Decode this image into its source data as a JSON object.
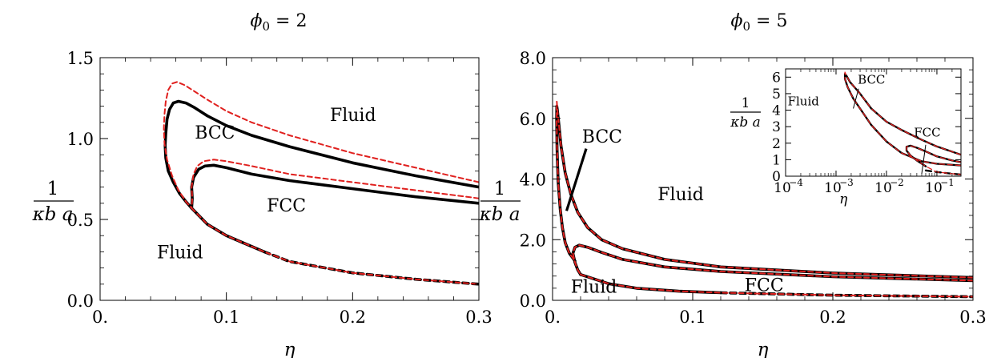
{
  "chart_data": [
    {
      "type": "line",
      "title": "ϕ₀ = 2",
      "xlabel": "η",
      "ylabel": {
        "numerator": "1",
        "denominator": "κb a"
      },
      "xlim": [
        0.0,
        0.3
      ],
      "ylim": [
        0.0,
        1.5
      ],
      "x_ticks": [
        0.0,
        0.1,
        0.2,
        0.3
      ],
      "x_tick_labels": [
        "0.",
        "0.1",
        "0.2",
        "0.3"
      ],
      "y_ticks": [
        0.0,
        0.5,
        1.0,
        1.5
      ],
      "y_tick_labels": [
        "0.0",
        "0.5",
        "1.0",
        "1.5"
      ],
      "annotations": [
        {
          "text": "BCC",
          "x": 0.075,
          "y": 1.0
        },
        {
          "text": "Fluid",
          "x": 0.182,
          "y": 1.11
        },
        {
          "text": "FCC",
          "x": 0.132,
          "y": 0.55
        },
        {
          "text": "Fluid",
          "x": 0.045,
          "y": 0.26
        }
      ],
      "series": [
        {
          "style": "solid-black",
          "x": [
            0.3,
            0.25,
            0.2,
            0.15,
            0.12,
            0.1,
            0.085,
            0.075,
            0.068,
            0.062,
            0.058,
            0.055,
            0.053,
            0.052,
            0.0515,
            0.052,
            0.054,
            0.058,
            0.063,
            0.068,
            0.0725
          ],
          "y": [
            0.7,
            0.77,
            0.85,
            0.95,
            1.02,
            1.08,
            1.14,
            1.19,
            1.22,
            1.23,
            1.22,
            1.18,
            1.12,
            1.03,
            0.96,
            0.88,
            0.8,
            0.73,
            0.66,
            0.61,
            0.57
          ]
        },
        {
          "style": "solid-black",
          "x": [
            0.3,
            0.25,
            0.2,
            0.15,
            0.12,
            0.1,
            0.09,
            0.083,
            0.078,
            0.074,
            0.0725,
            0.073,
            0.0725
          ],
          "y": [
            0.6,
            0.64,
            0.69,
            0.74,
            0.78,
            0.82,
            0.835,
            0.83,
            0.81,
            0.76,
            0.7,
            0.63,
            0.57
          ]
        },
        {
          "style": "solid-black",
          "x": [
            0.0725,
            0.085,
            0.1,
            0.115,
            0.13
          ],
          "y": [
            0.57,
            0.47,
            0.4,
            0.35,
            0.3
          ]
        },
        {
          "style": "dashed-black",
          "x": [
            0.13,
            0.15,
            0.2,
            0.25,
            0.3
          ],
          "y": [
            0.3,
            0.24,
            0.17,
            0.13,
            0.1
          ]
        },
        {
          "style": "dashed-red",
          "x": [
            0.3,
            0.25,
            0.2,
            0.15,
            0.12,
            0.1,
            0.085,
            0.075,
            0.067,
            0.061,
            0.057,
            0.054,
            0.052,
            0.051,
            0.0505,
            0.051,
            0.053,
            0.057,
            0.062,
            0.068,
            0.0725
          ],
          "y": [
            0.73,
            0.82,
            0.91,
            1.02,
            1.1,
            1.17,
            1.24,
            1.29,
            1.33,
            1.35,
            1.34,
            1.3,
            1.23,
            1.15,
            1.06,
            0.97,
            0.87,
            0.77,
            0.68,
            0.61,
            0.57
          ]
        },
        {
          "style": "dashed-red",
          "x": [
            0.3,
            0.25,
            0.2,
            0.15,
            0.12,
            0.1,
            0.09,
            0.082,
            0.077,
            0.074,
            0.0725,
            0.073,
            0.0725
          ],
          "y": [
            0.63,
            0.68,
            0.73,
            0.78,
            0.83,
            0.86,
            0.87,
            0.86,
            0.83,
            0.78,
            0.7,
            0.63,
            0.57
          ]
        },
        {
          "style": "dashed-red",
          "x": [
            0.0725,
            0.085,
            0.1,
            0.115,
            0.13,
            0.15,
            0.2,
            0.25,
            0.3
          ],
          "y": [
            0.57,
            0.47,
            0.4,
            0.35,
            0.3,
            0.24,
            0.17,
            0.13,
            0.1
          ]
        }
      ]
    },
    {
      "type": "line",
      "title": "ϕ₀ = 5",
      "xlabel": "η",
      "ylabel": {
        "numerator": "1",
        "denominator": "κb a"
      },
      "xlim": [
        0.0,
        0.3
      ],
      "ylim": [
        0.0,
        8.0
      ],
      "x_ticks": [
        0.0,
        0.1,
        0.2,
        0.3
      ],
      "x_tick_labels": [
        "0.",
        "0.1",
        "0.2",
        "0.3"
      ],
      "y_ticks": [
        0.0,
        2.0,
        4.0,
        6.0,
        8.0
      ],
      "y_tick_labels": [
        "0.0",
        "2.0",
        "4.0",
        "6.0",
        "8.0"
      ],
      "annotations": [
        {
          "text": "BCC",
          "x": 0.021,
          "y": 5.2
        },
        {
          "text": "Fluid",
          "x": 0.075,
          "y": 3.3
        },
        {
          "text": "Fluid",
          "x": 0.013,
          "y": 0.25
        },
        {
          "text": "FCC",
          "x": 0.137,
          "y": 0.3
        }
      ],
      "pointer": {
        "x": [
          0.01,
          0.024
        ],
        "y": [
          2.95,
          5.0
        ]
      },
      "series": [
        {
          "style": "solid-black",
          "x": [
            0.3,
            0.2,
            0.12,
            0.08,
            0.05,
            0.035,
            0.025,
            0.018,
            0.013,
            0.009,
            0.006,
            0.0045,
            0.0035,
            0.003,
            0.0029,
            0.0032,
            0.004,
            0.0055,
            0.007,
            0.009,
            0.012,
            0.016
          ],
          "y": [
            0.75,
            0.9,
            1.1,
            1.35,
            1.7,
            2.0,
            2.4,
            2.9,
            3.5,
            4.2,
            5.1,
            5.8,
            6.25,
            6.4,
            6.0,
            5.0,
            3.9,
            3.0,
            2.4,
            1.9,
            1.55,
            1.3
          ]
        },
        {
          "style": "solid-black",
          "x": [
            0.3,
            0.2,
            0.12,
            0.08,
            0.05,
            0.035,
            0.025,
            0.019,
            0.016,
            0.0145,
            0.016,
            0.018,
            0.02
          ],
          "y": [
            0.65,
            0.78,
            0.95,
            1.1,
            1.35,
            1.58,
            1.75,
            1.82,
            1.75,
            1.55,
            1.25,
            1.0,
            0.85
          ]
        },
        {
          "style": "solid-black",
          "x": [
            0.02,
            0.04,
            0.06,
            0.09,
            0.12
          ],
          "y": [
            0.85,
            0.55,
            0.4,
            0.3,
            0.25
          ]
        },
        {
          "style": "dashed-black",
          "x": [
            0.12,
            0.2,
            0.3
          ],
          "y": [
            0.25,
            0.17,
            0.12
          ]
        },
        {
          "style": "dashed-red",
          "x": [
            0.3,
            0.2,
            0.12,
            0.08,
            0.05,
            0.035,
            0.025,
            0.018,
            0.013,
            0.009,
            0.006,
            0.0045,
            0.0035,
            0.003,
            0.0029,
            0.0032,
            0.004,
            0.0055,
            0.007,
            0.009,
            0.012,
            0.016
          ],
          "y": [
            0.75,
            0.9,
            1.1,
            1.35,
            1.7,
            2.0,
            2.4,
            2.9,
            3.5,
            4.2,
            5.1,
            5.8,
            6.25,
            6.55,
            6.0,
            5.0,
            3.9,
            3.0,
            2.4,
            1.9,
            1.55,
            1.3
          ]
        },
        {
          "style": "dashed-red",
          "x": [
            0.3,
            0.2,
            0.12,
            0.08,
            0.05,
            0.035,
            0.025,
            0.019,
            0.016,
            0.0145,
            0.016,
            0.018,
            0.02
          ],
          "y": [
            0.65,
            0.78,
            0.95,
            1.1,
            1.35,
            1.58,
            1.75,
            1.82,
            1.75,
            1.55,
            1.25,
            1.0,
            0.85
          ]
        },
        {
          "style": "dashed-red",
          "x": [
            0.02,
            0.04,
            0.06,
            0.09,
            0.12,
            0.2,
            0.3
          ],
          "y": [
            0.85,
            0.55,
            0.4,
            0.3,
            0.25,
            0.17,
            0.12
          ]
        }
      ]
    },
    {
      "type": "line",
      "title": "",
      "xlabel": "η",
      "ylabel": {
        "numerator": "1",
        "denominator": "κb a"
      },
      "xscale": "log",
      "xlim": [
        0.0001,
        0.3
      ],
      "ylim": [
        0,
        6.5
      ],
      "x_ticks": [
        0.0001,
        0.001,
        0.01,
        0.1
      ],
      "x_tick_labels": [
        {
          "base": "10",
          "exp": "−4"
        },
        {
          "base": "10",
          "exp": "−3"
        },
        {
          "base": "10",
          "exp": "−2"
        },
        {
          "base": "10",
          "exp": "−1"
        }
      ],
      "y_ticks": [
        0,
        1,
        2,
        3,
        4,
        5,
        6
      ],
      "y_tick_labels": [
        "0",
        "1",
        "2",
        "3",
        "4",
        "5",
        "6"
      ],
      "annotations": [
        {
          "text": "Fluid",
          "x": 0.00011,
          "y": 4.3
        },
        {
          "text": "BCC",
          "x": 0.0027,
          "y": 5.6
        },
        {
          "text": "FCC",
          "x": 0.035,
          "y": 2.4
        }
      ],
      "pointers": [
        {
          "x": [
            0.0028,
            0.0022
          ],
          "y": [
            5.3,
            4.1
          ]
        },
        {
          "x": [
            0.06,
            0.05
          ],
          "y": [
            1.9,
            0.15
          ]
        }
      ],
      "series": [
        {
          "style": "solid-black",
          "x": [
            0.3,
            0.1,
            0.05,
            0.02,
            0.01,
            0.005,
            0.003,
            0.0019,
            0.0016,
            0.0015,
            0.0015,
            0.0017,
            0.0022,
            0.003,
            0.005,
            0.01,
            0.02,
            0.05,
            0.1,
            0.3
          ],
          "y": [
            1.3,
            1.8,
            2.2,
            2.8,
            3.3,
            4.1,
            5.0,
            5.7,
            6.1,
            6.2,
            5.9,
            5.4,
            4.7,
            4.1,
            3.1,
            2.1,
            1.4,
            0.9,
            0.75,
            0.65
          ]
        },
        {
          "style": "solid-black",
          "x": [
            0.3,
            0.2,
            0.1,
            0.06,
            0.04,
            0.03,
            0.025,
            0.025,
            0.03,
            0.04,
            0.06
          ],
          "y": [
            0.85,
            0.95,
            1.2,
            1.5,
            1.72,
            1.85,
            1.78,
            1.55,
            1.25,
            0.95,
            0.6
          ]
        },
        {
          "style": "dashed-black",
          "x": [
            0.06,
            0.1,
            0.2,
            0.3
          ],
          "y": [
            0.35,
            0.25,
            0.15,
            0.1
          ]
        },
        {
          "style": "dashed-red",
          "x": [
            0.3,
            0.1,
            0.05,
            0.02,
            0.01,
            0.005,
            0.003,
            0.0019,
            0.0016,
            0.0015,
            0.0015,
            0.0017,
            0.0022,
            0.003,
            0.005,
            0.01,
            0.02,
            0.05,
            0.1,
            0.3
          ],
          "y": [
            1.3,
            1.8,
            2.2,
            2.8,
            3.3,
            4.1,
            5.0,
            5.7,
            6.1,
            6.3,
            5.9,
            5.4,
            4.7,
            4.1,
            3.1,
            2.1,
            1.4,
            0.9,
            0.75,
            0.65
          ]
        },
        {
          "style": "dashed-red",
          "x": [
            0.3,
            0.2,
            0.1,
            0.06,
            0.04,
            0.03,
            0.025,
            0.025,
            0.03,
            0.04,
            0.06,
            0.1,
            0.2,
            0.3
          ],
          "y": [
            0.85,
            0.95,
            1.2,
            1.5,
            1.72,
            1.85,
            1.78,
            1.55,
            1.25,
            0.95,
            0.6,
            0.25,
            0.15,
            0.1
          ]
        }
      ]
    }
  ]
}
